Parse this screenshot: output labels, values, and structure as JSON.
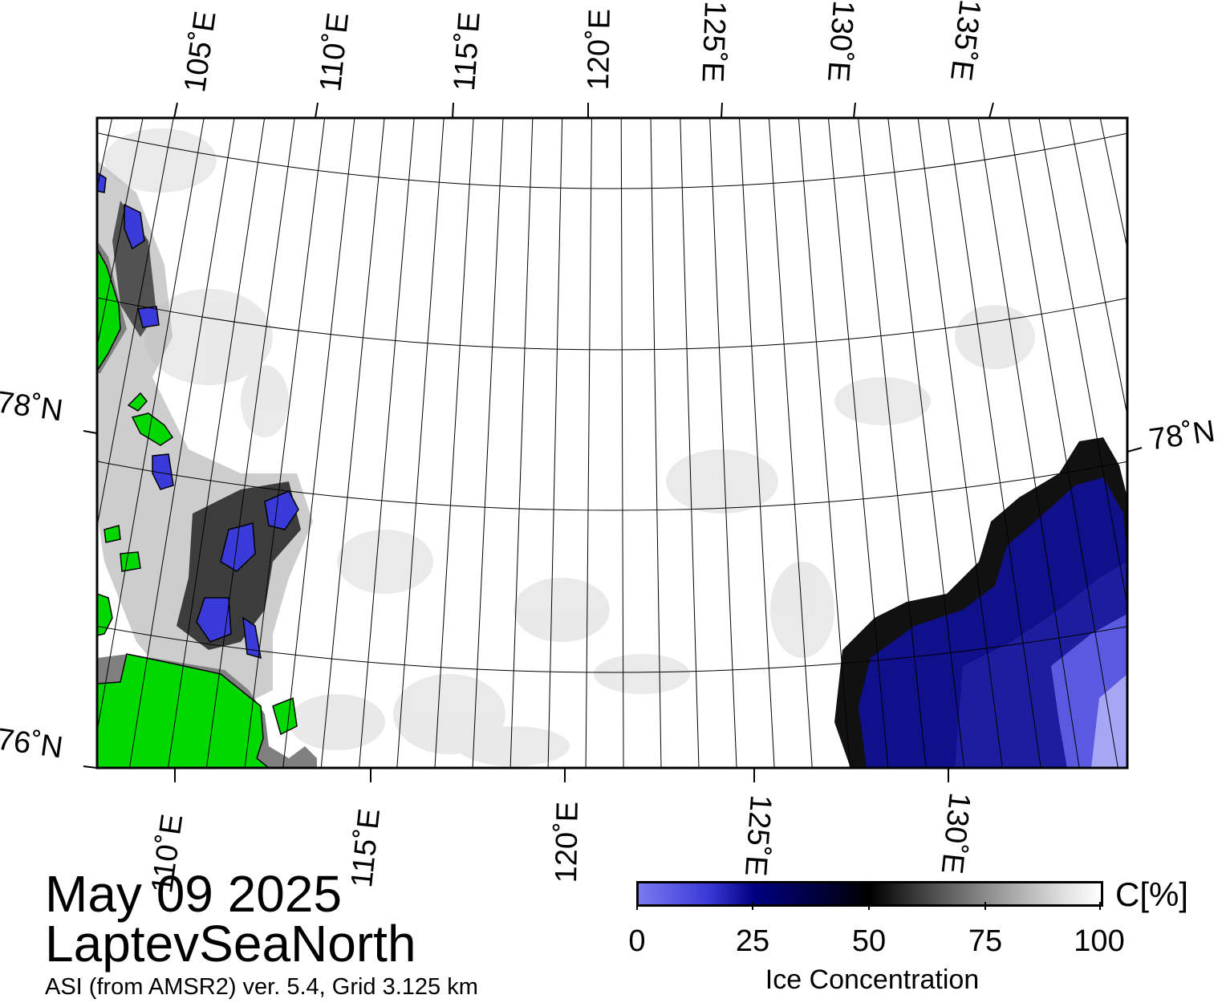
{
  "title": {
    "date": "May 09 2025",
    "region": "LaptevSeaNorth",
    "subtitle": "ASI (from AMSR2) ver. 5.4,  Grid 3.125 km"
  },
  "map": {
    "frame_color": "#000000",
    "land_color": "#00d800",
    "coast_fill_color": "#808080",
    "high_ice_color": "#ffffff",
    "low_ice_color": "#000080",
    "top_longitude_labels": [
      "105˚E",
      "110˚E",
      "115˚E",
      "120˚E",
      "125˚E",
      "130˚E",
      "135˚E"
    ],
    "bottom_longitude_labels": [
      "110˚E",
      "115˚E",
      "120˚E",
      "125˚E",
      "130˚E"
    ],
    "latitude_labels": {
      "left_upper": "78˚N",
      "left_lower": "76˚N",
      "right_upper": "78˚N"
    }
  },
  "colorbar": {
    "tick_labels": [
      "0",
      "25",
      "50",
      "75",
      "100"
    ],
    "unit": "C[%]",
    "label": "Ice Concentration",
    "colors": [
      "#7a7af0",
      "#000080",
      "#000000",
      "#9a9a9a",
      "#ffffff"
    ]
  }
}
